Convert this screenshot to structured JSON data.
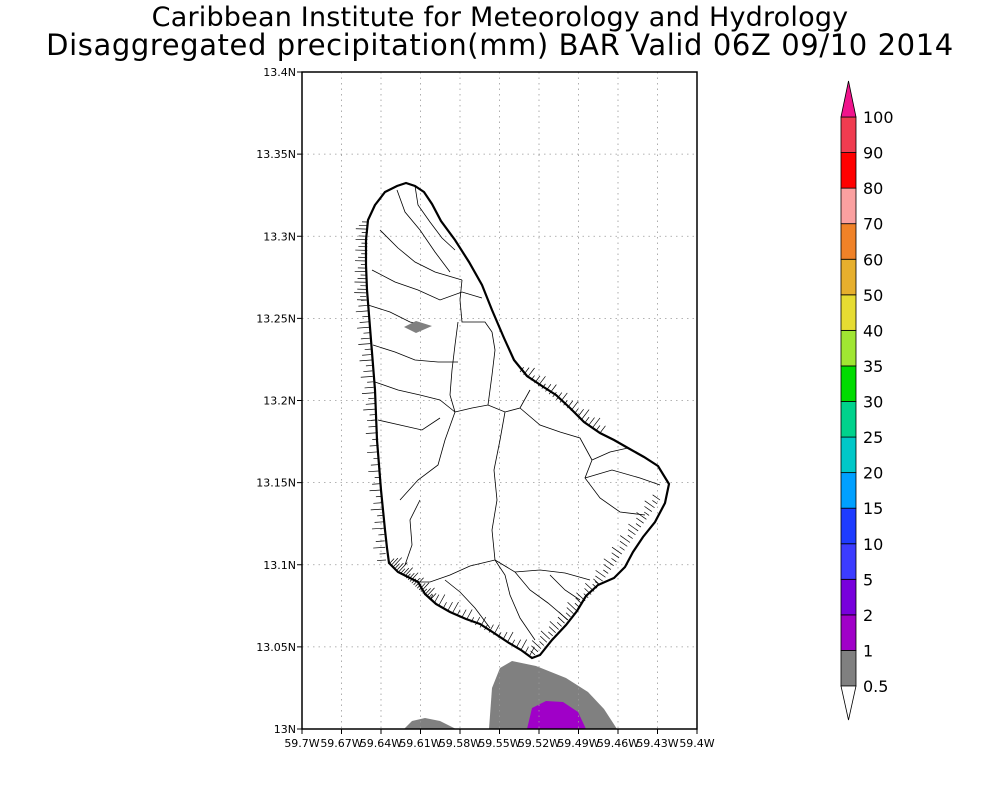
{
  "header": {
    "institute": "Caribbean Institute for Meteorology and Hydrology",
    "product": "Disaggregated precipitation(mm) BAR Valid 06Z 09/10 2014"
  },
  "map": {
    "lon_min": -59.7,
    "lon_max": -59.4,
    "lat_min": 13.0,
    "lat_max": 13.4,
    "lat_ticks": [
      {
        "value": 13.4,
        "label": "13.4N"
      },
      {
        "value": 13.35,
        "label": "13.35N"
      },
      {
        "value": 13.3,
        "label": "13.3N"
      },
      {
        "value": 13.25,
        "label": "13.25N"
      },
      {
        "value": 13.2,
        "label": "13.2N"
      },
      {
        "value": 13.15,
        "label": "13.15N"
      },
      {
        "value": 13.1,
        "label": "13.1N"
      },
      {
        "value": 13.05,
        "label": "13.05N"
      },
      {
        "value": 13.0,
        "label": "13N"
      }
    ],
    "lon_ticks": [
      {
        "value": -59.7,
        "label": "59.7W"
      },
      {
        "value": -59.67,
        "label": "59.67W"
      },
      {
        "value": -59.64,
        "label": "59.64W"
      },
      {
        "value": -59.61,
        "label": "59.61W"
      },
      {
        "value": -59.58,
        "label": "59.58W"
      },
      {
        "value": -59.55,
        "label": "59.55W"
      },
      {
        "value": -59.52,
        "label": "59.52W"
      },
      {
        "value": -59.49,
        "label": "59.49W"
      },
      {
        "value": -59.46,
        "label": "59.46W"
      },
      {
        "value": -59.43,
        "label": "59.43W"
      },
      {
        "value": -59.4,
        "label": "59.4W"
      }
    ],
    "grid": true,
    "land_outline": "Barbados"
  },
  "colorbar": {
    "levels": [
      {
        "label": "0.5",
        "color": "#ffffff"
      },
      {
        "label": "1",
        "color": "#808080"
      },
      {
        "label": "2",
        "color": "#a000c8"
      },
      {
        "label": "5",
        "color": "#7800dc"
      },
      {
        "label": "10",
        "color": "#3c3cff"
      },
      {
        "label": "15",
        "color": "#1e3cff"
      },
      {
        "label": "20",
        "color": "#00a0ff"
      },
      {
        "label": "25",
        "color": "#00c8c8"
      },
      {
        "label": "30",
        "color": "#00d28c"
      },
      {
        "label": "35",
        "color": "#00dc00"
      },
      {
        "label": "40",
        "color": "#a0e632"
      },
      {
        "label": "50",
        "color": "#e6dc32"
      },
      {
        "label": "60",
        "color": "#e6af2d"
      },
      {
        "label": "70",
        "color": "#f08228"
      },
      {
        "label": "80",
        "color": "#faa0a0"
      },
      {
        "label": "90",
        "color": "#ff0000"
      },
      {
        "label": "100",
        "color": "#f03c50"
      }
    ],
    "top_arrow_color": "#f0148c",
    "bottom_arrow_color": "#ffffff"
  }
}
